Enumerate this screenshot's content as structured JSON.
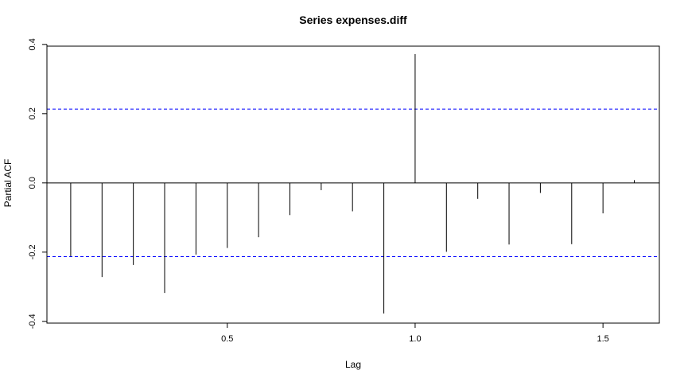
{
  "chart_data": {
    "type": "bar",
    "title": "Series  expenses.diff",
    "xlabel": "Lag",
    "ylabel": "Partial ACF",
    "xlim": [
      0.02,
      1.65
    ],
    "ylim": [
      -0.405,
      0.395
    ],
    "x_ticks": [
      0.5,
      1.0,
      1.5
    ],
    "x_tick_labels": [
      "0.5",
      "1.0",
      "1.5"
    ],
    "y_ticks": [
      -0.4,
      -0.2,
      0.0,
      0.2,
      0.4
    ],
    "y_tick_labels": [
      "-0.4",
      "-0.2",
      "0.0",
      "0.2",
      "0.4"
    ],
    "confidence_bound": 0.213,
    "bound_color": "#0000ff",
    "spike_color": "#000000",
    "grid": false,
    "series": [
      {
        "lags": [
          0.0833,
          0.1667,
          0.25,
          0.3333,
          0.4167,
          0.5,
          0.5833,
          0.6667,
          0.75,
          0.8333,
          0.9167,
          1.0,
          1.0833,
          1.1667,
          1.25,
          1.3333,
          1.4167,
          1.5,
          1.5833
        ],
        "values": [
          -0.212,
          -0.272,
          -0.237,
          -0.318,
          -0.207,
          -0.188,
          -0.157,
          -0.093,
          -0.021,
          -0.082,
          -0.377,
          0.372,
          -0.199,
          -0.046,
          -0.178,
          -0.029,
          -0.177,
          -0.088,
          0.008
        ]
      }
    ]
  }
}
